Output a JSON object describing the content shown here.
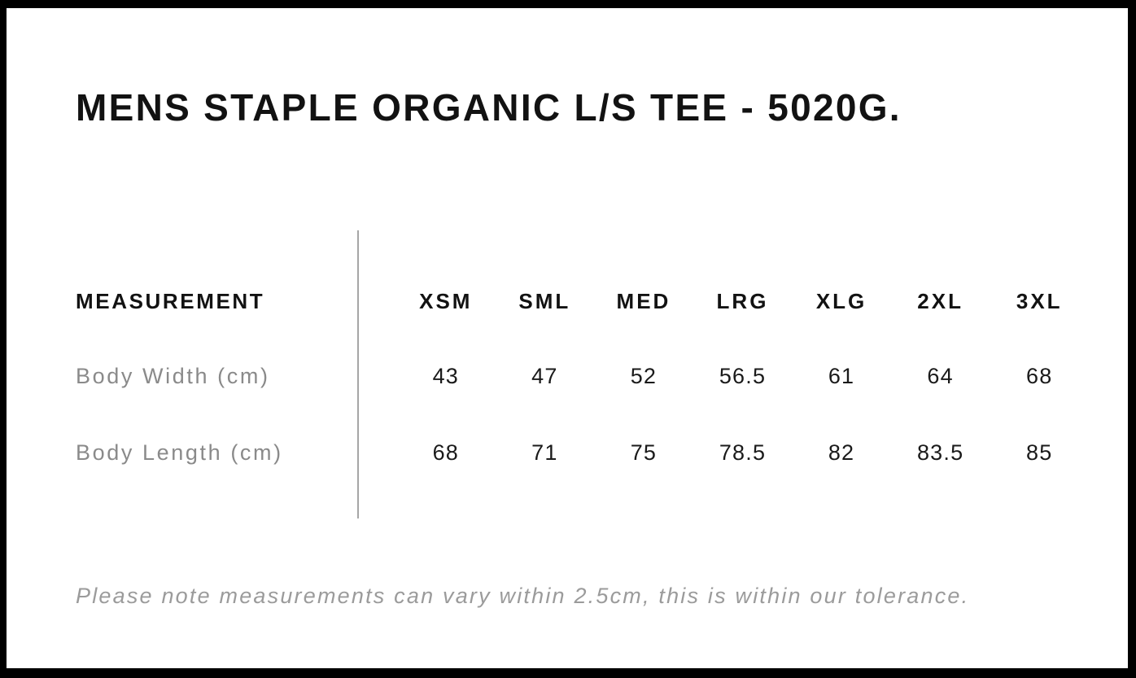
{
  "page": {
    "title": "MENS STAPLE ORGANIC L/S TEE - 5020G.",
    "note": "Please note measurements can vary within 2.5cm, this is within our tolerance."
  },
  "size_chart": {
    "measurement_header": "MEASUREMENT",
    "size_headers": [
      "XSM",
      "SML",
      "MED",
      "LRG",
      "XLG",
      "2XL",
      "3XL"
    ],
    "rows": [
      {
        "label": "Body Width (cm)",
        "values": [
          "43",
          "47",
          "52",
          "56.5",
          "61",
          "64",
          "68"
        ]
      },
      {
        "label": "Body Length (cm)",
        "values": [
          "68",
          "71",
          "75",
          "78.5",
          "82",
          "83.5",
          "85"
        ]
      }
    ]
  },
  "colors": {
    "frame": "#000000",
    "heading_text": "#121212",
    "value_text": "#1a1a1a",
    "row_label_text": "#8a8a8a",
    "note_text": "#9b9b9b",
    "divider": "#a6a6a6",
    "background": "#ffffff"
  }
}
